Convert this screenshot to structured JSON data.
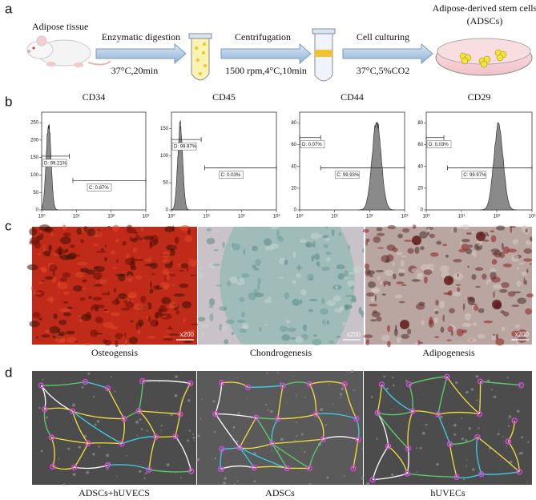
{
  "panel_labels": [
    "a",
    "b",
    "c",
    "d"
  ],
  "workflow": {
    "source": "Adipose tissue",
    "steps": [
      {
        "name": "Enzymatic digestion",
        "condition": "37°C,20min"
      },
      {
        "name": "Centrifugation",
        "condition": "1500 rpm,4°C,10min"
      },
      {
        "name": "Cell culturing",
        "condition": "37°C,5%CO2"
      }
    ],
    "result": [
      "Adipose-derived stem cells",
      "(ADSCs)"
    ]
  },
  "flow": {
    "panels": [
      {
        "title": "CD34",
        "ylim": [
          0,
          280
        ],
        "yticks": [
          0,
          50,
          100,
          150,
          200,
          250
        ],
        "xlim": [
          0,
          3
        ],
        "xticks": [
          {
            "value": 0,
            "label": "10⁰"
          },
          {
            "value": 1,
            "label": "10¹"
          },
          {
            "value": 2,
            "label": "10²"
          },
          {
            "value": 3,
            "label": "10³"
          }
        ],
        "peak": {
          "x": 0.2,
          "height": 262
        },
        "gates": [
          {
            "label": "D: 99.21%",
            "from": 0,
            "to": 0.8
          },
          {
            "label": "C: 0.87%",
            "from": 0.9,
            "to": 3
          }
        ]
      },
      {
        "title": "CD45",
        "ylim": [
          0,
          180
        ],
        "yticks": [
          0,
          50,
          100,
          150
        ],
        "xlim": [
          0,
          3
        ],
        "xticks": [
          {
            "value": 0,
            "label": "10⁰"
          },
          {
            "value": 1,
            "label": "10¹"
          },
          {
            "value": 2,
            "label": "10²"
          },
          {
            "value": 3,
            "label": "10³"
          }
        ],
        "peak": {
          "x": 0.25,
          "height": 165
        },
        "gates": [
          {
            "label": "D: 99.97%",
            "from": 0,
            "to": 0.85
          },
          {
            "label": "C: 0.03%",
            "from": 0.95,
            "to": 3
          }
        ]
      },
      {
        "title": "CD44",
        "ylim": [
          0,
          90
        ],
        "yticks": [
          0,
          20,
          40,
          60,
          80
        ],
        "xlim": [
          0,
          3
        ],
        "xticks": [
          {
            "value": 0,
            "label": "10⁰"
          },
          {
            "value": 1,
            "label": "10¹"
          },
          {
            "value": 2,
            "label": "10²"
          },
          {
            "value": 3,
            "label": "10³"
          }
        ],
        "peak": {
          "x": 2.2,
          "height": 86
        },
        "gates": [
          {
            "label": "D: 0.07%",
            "from": 0,
            "to": 0.6
          },
          {
            "label": "C: 99.93%",
            "from": 0.6,
            "to": 3
          }
        ]
      },
      {
        "title": "CD29",
        "ylim": [
          0,
          90
        ],
        "yticks": [
          0,
          20,
          40,
          60,
          80
        ],
        "xlim": [
          0,
          3
        ],
        "xticks": [
          {
            "value": 0,
            "label": "10⁰"
          },
          {
            "value": 1,
            "label": "10¹"
          },
          {
            "value": 2,
            "label": "10²"
          },
          {
            "value": 3,
            "label": "10³"
          }
        ],
        "peak": {
          "x": 2.05,
          "height": 85
        },
        "gates": [
          {
            "label": "D: 0.03%",
            "from": 0,
            "to": 0.5
          },
          {
            "label": "C: 99.97%",
            "from": 0.6,
            "to": 3
          }
        ]
      }
    ]
  },
  "differentiation": [
    {
      "label": "Osteogensis",
      "magnification": "x200"
    },
    {
      "label": "Chondrogenesis",
      "magnification": "x200"
    },
    {
      "label": "Adipogenesis",
      "magnification": "x200"
    }
  ],
  "tube_formation": [
    "ADSCs+hUVECS",
    "ADSCs",
    "hUVECs"
  ]
}
